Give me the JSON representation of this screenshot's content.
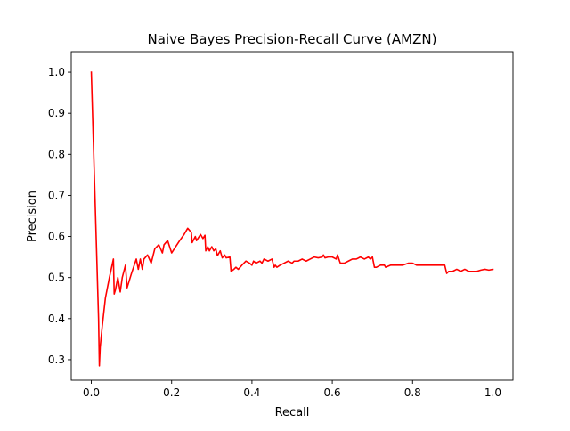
{
  "chart_data": {
    "type": "line",
    "title": "Naive Bayes Precision-Recall Curve (AMZN)",
    "xlabel": "Recall",
    "ylabel": "Precision",
    "xlim": [
      -0.05,
      1.05
    ],
    "ylim": [
      0.25,
      1.05
    ],
    "xticks": [
      0.0,
      0.2,
      0.4,
      0.6,
      0.8,
      1.0
    ],
    "xtick_labels": [
      "0.0",
      "0.2",
      "0.4",
      "0.6",
      "0.8",
      "1.0"
    ],
    "yticks": [
      0.3,
      0.4,
      0.5,
      0.6,
      0.7,
      0.8,
      0.9,
      1.0
    ],
    "ytick_labels": [
      "0.3",
      "0.4",
      "0.5",
      "0.6",
      "0.7",
      "0.8",
      "0.9",
      "1.0"
    ],
    "grid": false,
    "legend": null,
    "series": [
      {
        "color": "#ff0000",
        "x": [
          0.0,
          0.018,
          0.02,
          0.022,
          0.027,
          0.035,
          0.045,
          0.055,
          0.057,
          0.06,
          0.066,
          0.072,
          0.077,
          0.085,
          0.089,
          0.1,
          0.112,
          0.117,
          0.122,
          0.127,
          0.131,
          0.14,
          0.149,
          0.158,
          0.168,
          0.177,
          0.181,
          0.19,
          0.2,
          0.21,
          0.22,
          0.231,
          0.24,
          0.249,
          0.251,
          0.259,
          0.262,
          0.272,
          0.278,
          0.283,
          0.285,
          0.29,
          0.294,
          0.3,
          0.305,
          0.31,
          0.314,
          0.321,
          0.326,
          0.332,
          0.336,
          0.345,
          0.348,
          0.355,
          0.36,
          0.366,
          0.375,
          0.385,
          0.394,
          0.4,
          0.404,
          0.41,
          0.42,
          0.425,
          0.43,
          0.44,
          0.45,
          0.455,
          0.458,
          0.462,
          0.47,
          0.48,
          0.49,
          0.5,
          0.505,
          0.515,
          0.525,
          0.535,
          0.545,
          0.555,
          0.565,
          0.575,
          0.578,
          0.582,
          0.59,
          0.6,
          0.61,
          0.613,
          0.62,
          0.63,
          0.64,
          0.65,
          0.66,
          0.67,
          0.68,
          0.69,
          0.695,
          0.7,
          0.705,
          0.71,
          0.72,
          0.73,
          0.733,
          0.745,
          0.76,
          0.775,
          0.79,
          0.8,
          0.81,
          0.82,
          0.84,
          0.86,
          0.875,
          0.88,
          0.885,
          0.89,
          0.9,
          0.91,
          0.92,
          0.93,
          0.94,
          0.95,
          0.96,
          0.97,
          0.98,
          0.99,
          1.0
        ],
        "y": [
          1.0,
          0.4,
          0.285,
          0.33,
          0.38,
          0.45,
          0.5,
          0.545,
          0.46,
          0.47,
          0.5,
          0.465,
          0.5,
          0.53,
          0.475,
          0.51,
          0.545,
          0.52,
          0.545,
          0.52,
          0.545,
          0.555,
          0.535,
          0.57,
          0.58,
          0.56,
          0.58,
          0.59,
          0.56,
          0.575,
          0.59,
          0.605,
          0.62,
          0.61,
          0.585,
          0.6,
          0.59,
          0.605,
          0.595,
          0.603,
          0.565,
          0.575,
          0.565,
          0.575,
          0.565,
          0.57,
          0.553,
          0.565,
          0.548,
          0.555,
          0.548,
          0.55,
          0.515,
          0.52,
          0.525,
          0.52,
          0.53,
          0.54,
          0.535,
          0.53,
          0.54,
          0.535,
          0.54,
          0.535,
          0.545,
          0.54,
          0.545,
          0.525,
          0.53,
          0.525,
          0.53,
          0.535,
          0.54,
          0.535,
          0.54,
          0.54,
          0.545,
          0.54,
          0.545,
          0.55,
          0.548,
          0.55,
          0.555,
          0.548,
          0.55,
          0.55,
          0.545,
          0.555,
          0.535,
          0.535,
          0.54,
          0.545,
          0.545,
          0.55,
          0.545,
          0.55,
          0.545,
          0.55,
          0.525,
          0.525,
          0.53,
          0.53,
          0.525,
          0.53,
          0.53,
          0.53,
          0.535,
          0.535,
          0.53,
          0.53,
          0.53,
          0.53,
          0.53,
          0.53,
          0.51,
          0.515,
          0.515,
          0.52,
          0.515,
          0.52,
          0.515,
          0.515,
          0.515,
          0.518,
          0.52,
          0.518,
          0.52
        ]
      }
    ]
  }
}
